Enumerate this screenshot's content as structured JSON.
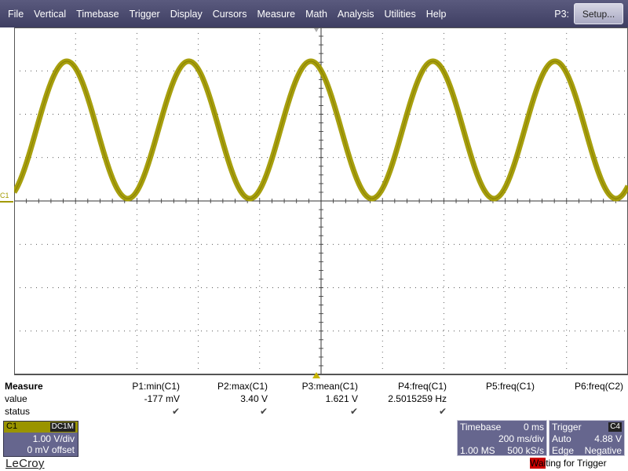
{
  "menu": {
    "items": [
      "File",
      "Vertical",
      "Timebase",
      "Trigger",
      "Display",
      "Cursors",
      "Measure",
      "Math",
      "Analysis",
      "Utilities",
      "Help"
    ],
    "focus_label": "P3:",
    "setup_label": "Setup..."
  },
  "grid": {
    "c1_marker": "C1",
    "trace_color": "#a29a00",
    "grid_color": "#222222"
  },
  "measure": {
    "title": "Measure",
    "row_labels": [
      "value",
      "status"
    ],
    "params": [
      {
        "name": "P1:min(C1)",
        "value": "-177 mV",
        "status": "✔"
      },
      {
        "name": "P2:max(C1)",
        "value": "3.40 V",
        "status": "✔"
      },
      {
        "name": "P3:mean(C1)",
        "value": "1.621 V",
        "status": "✔"
      },
      {
        "name": "P4:freq(C1)",
        "value": "2.5015259 Hz",
        "status": "✔"
      },
      {
        "name": "P5:freq(C1)",
        "value": "",
        "status": ""
      },
      {
        "name": "P6:freq(C2)",
        "value": "",
        "status": ""
      }
    ]
  },
  "channel": {
    "name": "C1",
    "coupling": "DC1M",
    "scale": "1.00 V/div",
    "offset": "0 mV offset"
  },
  "timebase": {
    "title": "Timebase",
    "delay": "0 ms",
    "per_div": "200 ms/div",
    "samples": "1.00 MS",
    "rate": "500 kS/s"
  },
  "trigger": {
    "title": "Trigger",
    "channel": "C4",
    "mode": "Auto",
    "level": "4.88 V",
    "type": "Edge",
    "slope": "Negative"
  },
  "brand": "LeCroy",
  "status": {
    "highlight": "Wai",
    "rest": "ting for Trigger"
  }
}
